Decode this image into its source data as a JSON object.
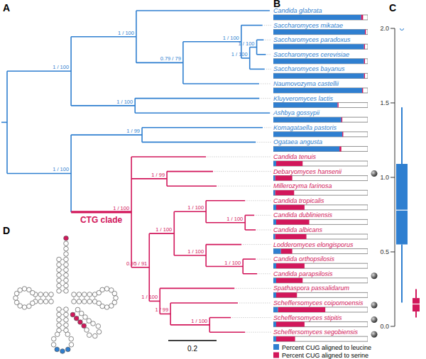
{
  "panel_labels": [
    "A",
    "B",
    "C",
    "D"
  ],
  "scale_bar": 0.2,
  "chart_data": [
    {
      "type": "bar",
      "orientation": "horizontal",
      "stacked": true,
      "tick_labels": false,
      "legend": "bottom",
      "xlim": [
        0,
        100
      ],
      "categories": [
        "Candida glabrata",
        "Saccharomyces mikatae",
        "Saccharomyces paradoxus",
        "Saccharomyces cerevisiae",
        "Saccharomyces bayanus",
        "Naumovozyma castellii",
        "Kluyveromyces lactis",
        "Ashbya gossypii",
        "Komagataella pastoris",
        "Ogataea angusta",
        "Candida tenuis",
        "Debaryomyces hansenii",
        "Millerozyma farinosa",
        "Candida tropicalis",
        "Candida dubliniensis",
        "Candida albicans",
        "Lodderomyces elongisporus",
        "Candida orthopsilosis",
        "Candida parapsilosis",
        "Spathaspora passalidarum",
        "Scheffersomyces coipomoensis",
        "Scheffersomyces stipitis",
        "Scheffersomyces segobiensis"
      ],
      "series": [
        {
          "name": "Percent CUG aligned to leucine",
          "color": "#2f7fd0",
          "values": [
            93,
            97,
            96,
            96,
            96,
            94,
            68,
            72,
            73,
            70,
            3,
            2,
            2,
            3,
            3,
            2,
            8,
            3,
            3,
            3,
            5,
            3,
            3
          ]
        },
        {
          "name": "Percent CUG aligned to serine",
          "color": "#d2175b",
          "values": [
            2,
            1,
            1,
            1,
            1,
            1,
            1,
            1,
            1,
            2,
            28,
            18,
            20,
            30,
            35,
            33,
            12,
            30,
            28,
            22,
            50,
            30,
            20
          ]
        }
      ]
    },
    {
      "type": "box",
      "ylim": [
        0,
        2
      ],
      "yticks": [
        {
          "value": 0,
          "label": "0.0"
        },
        0.5,
        {
          "value": 1,
          "label": "1.0"
        },
        1.5,
        {
          "value": 2,
          "label": "2.0"
        }
      ],
      "series": [
        {
          "color": "#2f7fd0",
          "whisker_low": 0.16,
          "q1": 0.55,
          "median": 0.78,
          "q3": 1.09,
          "whisker_high": 1.47,
          "outliers": [
            2
          ]
        },
        {
          "color": "#d2175b",
          "whisker_low": 0.06,
          "q1": 0.1,
          "median": 0.15,
          "q3": 0.19,
          "whisker_high": 0.25,
          "outliers": []
        }
      ]
    }
  ],
  "tree": {
    "color": "#2f7fd0",
    "children": [
      {
        "support": "1 / 100",
        "length": 0.265,
        "children": [
          {
            "support": "1 / 100",
            "length": 0.27,
            "children": [
              {
                "leaf": 0,
                "length": 0.553
              },
              {
                "support": "0.79 / 79",
                "length": 0.194,
                "children": [
                  {
                    "support": "1 / 100",
                    "length": 0.241,
                    "children": [
                      {
                        "leaf": 1,
                        "length": 0.088
                      },
                      {
                        "support": "1 / 100",
                        "length": 0.035,
                        "children": [
                          {
                            "support": "1 / 100",
                            "length": 0.029,
                            "children": [
                              {
                                "leaf": 2,
                                "length": 0.029
                              },
                              {
                                "leaf": 3,
                                "length": 0.038
                              }
                            ]
                          },
                          {
                            "leaf": 4,
                            "length": 0.062
                          }
                        ]
                      }
                    ]
                  },
                  {
                    "leaf": 5,
                    "length": 0.315
                  }
                ]
              }
            ]
          },
          {
            "support": "1 / 100",
            "length": 0.265,
            "children": [
              {
                "leaf": 6,
                "length": 0.515
              },
              {
                "leaf": 7,
                "length": 0.559
              }
            ]
          }
        ]
      },
      {
        "support": "1 / 100",
        "length": 0.265,
        "children": [
          {
            "support": "1 / 99",
            "length": 0.294,
            "children": [
              {
                "leaf": 8,
                "length": 0.5
              },
              {
                "leaf": 9,
                "length": 0.471
              }
            ]
          },
          {
            "support": "1 / 100",
            "clade": "CTG clade",
            "color": "#d2175b",
            "length": 0.25,
            "children": [
              {
                "leaf": 10,
                "length": 0.309
              },
              {
                "support": "1 / 99",
                "length": 0.147,
                "children": [
                  {
                    "leaf": 11,
                    "length": 0.191,
                    "marker": "circle"
                  },
                  {
                    "leaf": 12,
                    "length": 0.206
                  }
                ]
              },
              {
                "support": "0.95 / 91",
                "length": 0.074,
                "children": [
                  {
                    "support": "1 / 100",
                    "length": 0.103,
                    "children": [
                      {
                        "support": "1 / 100",
                        "length": 0.132,
                        "children": [
                          {
                            "leaf": 13,
                            "length": 0.162
                          },
                          {
                            "support": "1 / 100",
                            "length": 0.162,
                            "children": [
                              {
                                "leaf": 14,
                                "length": 0.038
                              },
                              {
                                "leaf": 15,
                                "length": 0.044
                              }
                            ]
                          }
                        ]
                      },
                      {
                        "support": "1 / 100",
                        "length": 0.132,
                        "children": [
                          {
                            "leaf": 16,
                            "length": 0.147
                          },
                          {
                            "support": "1 / 100",
                            "length": 0.153,
                            "children": [
                              {
                                "leaf": 17,
                                "length": 0.053
                              },
                              {
                                "leaf": 18,
                                "length": 0.059,
                                "marker": "circle"
                              }
                            ]
                          }
                        ]
                      }
                    ]
                  },
                  {
                    "support": "1 / 100",
                    "length": 0.044,
                    "children": [
                      {
                        "leaf": 19,
                        "length": 0.309
                      },
                      {
                        "support": "1 / 99",
                        "length": 0.044,
                        "children": [
                          {
                            "leaf": 20,
                            "length": 0.279,
                            "marker": "circle"
                          },
                          {
                            "support": "1 / 100",
                            "length": 0.162,
                            "children": [
                              {
                                "leaf": 21,
                                "length": 0.088,
                                "marker": "circle"
                              },
                              {
                                "leaf": 22,
                                "length": 0.147,
                                "marker": "circle"
                              }
                            ]
                          }
                        ]
                      }
                    ]
                  }
                ]
              }
            ]
          }
        ]
      }
    ]
  }
}
